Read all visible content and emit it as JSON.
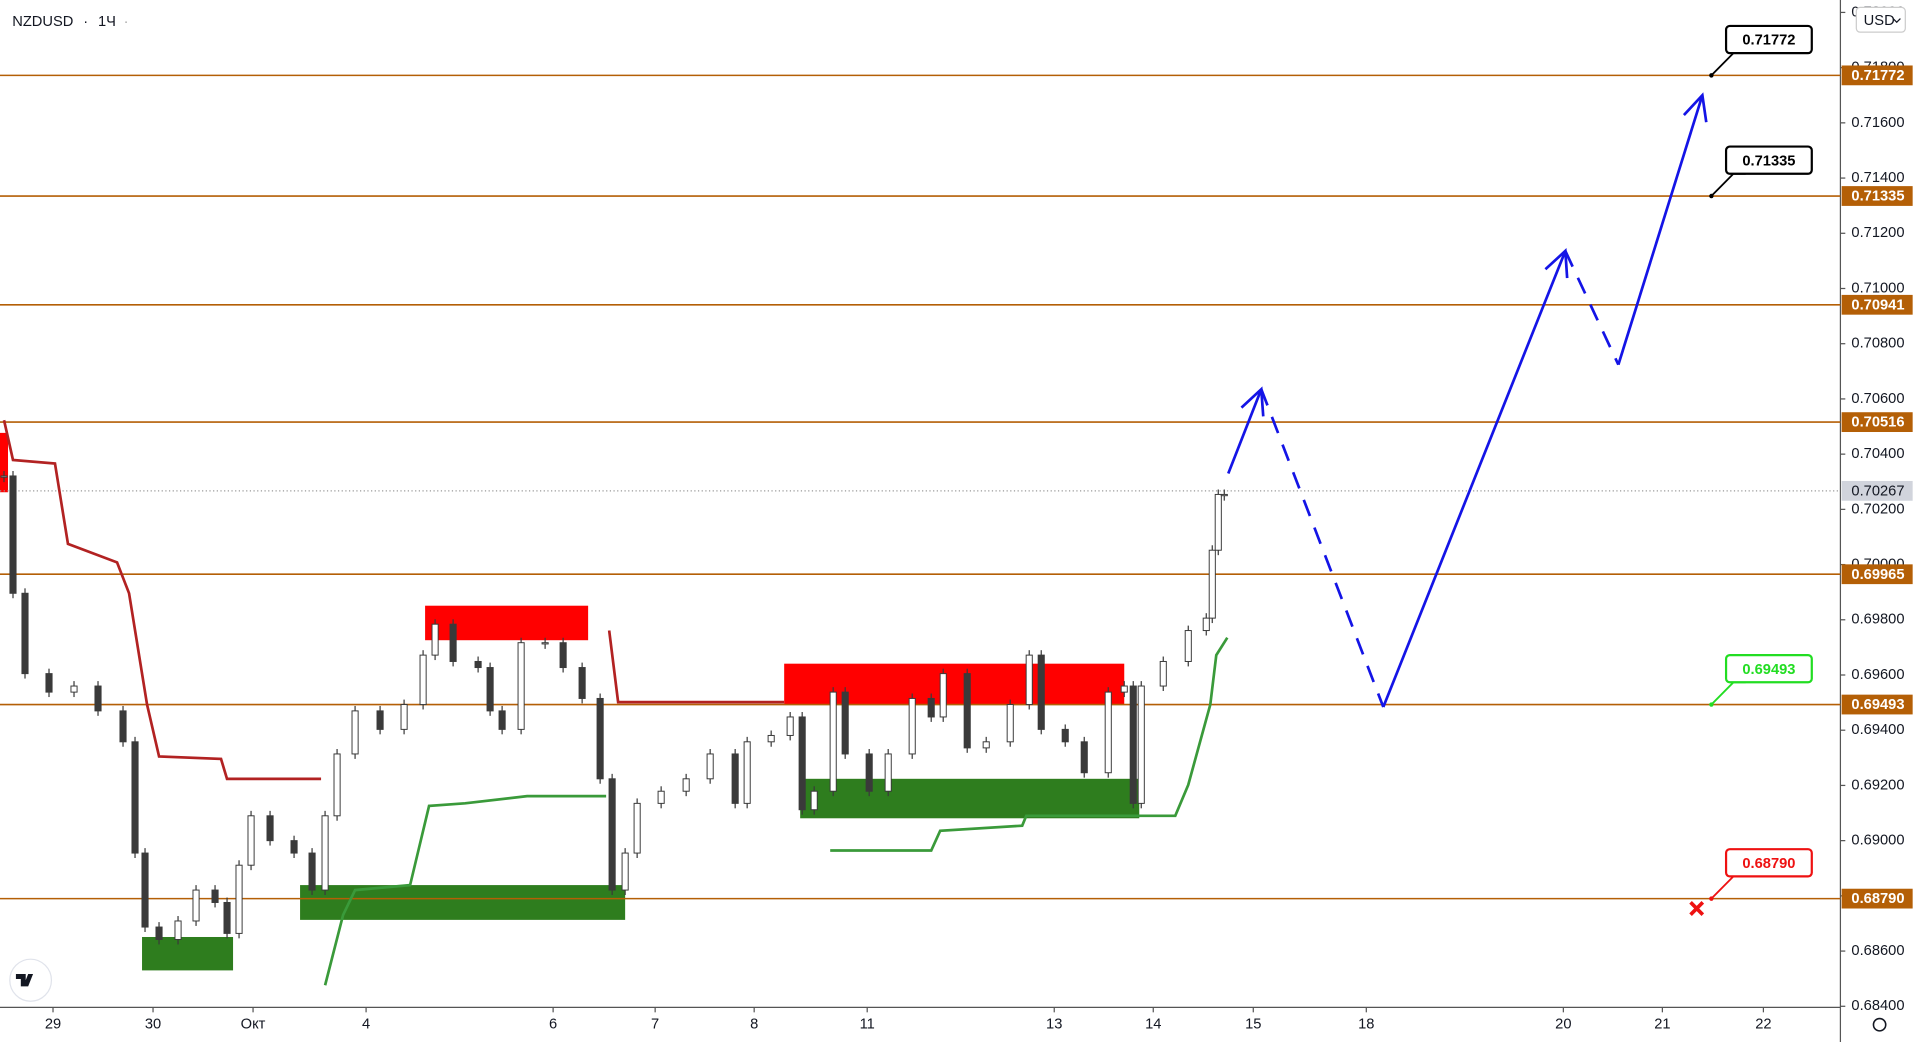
{
  "chart_data": {
    "type": "candlestick",
    "title": "NZDUSD",
    "interval": "1Ч",
    "currency": "USD",
    "ylim": [
      0.68396,
      0.72045
    ],
    "yticks": [
      {
        "value": 0.684,
        "label": "0.68400"
      },
      {
        "value": 0.686,
        "label": "0.68600"
      },
      {
        "value": 0.688,
        "label": "0.68800"
      },
      {
        "value": 0.69,
        "label": "0.69000"
      },
      {
        "value": 0.692,
        "label": "0.69200"
      },
      {
        "value": 0.694,
        "label": "0.69400"
      },
      {
        "value": 0.696,
        "label": "0.69600"
      },
      {
        "value": 0.698,
        "label": "0.69800"
      },
      {
        "value": 0.7,
        "label": "0.70000"
      },
      {
        "value": 0.702,
        "label": "0.70200"
      },
      {
        "value": 0.704,
        "label": "0.70400"
      },
      {
        "value": 0.706,
        "label": "0.70600"
      },
      {
        "value": 0.708,
        "label": "0.70800"
      },
      {
        "value": 0.71,
        "label": "0.71000"
      },
      {
        "value": 0.712,
        "label": "0.71200"
      },
      {
        "value": 0.714,
        "label": "0.71400"
      },
      {
        "value": 0.716,
        "label": "0.71600"
      },
      {
        "value": 0.718,
        "label": "0.71800"
      },
      {
        "value": 0.72,
        "label": "0.72000"
      }
    ],
    "xlim": [
      -0.53,
      17.87
    ],
    "xticks": [
      {
        "value": 0,
        "label": "29"
      },
      {
        "value": 1,
        "label": "30"
      },
      {
        "value": 2,
        "label": "Окт"
      },
      {
        "value": 3.13,
        "label": "4"
      },
      {
        "value": 5.0,
        "label": "6"
      },
      {
        "value": 6.02,
        "label": "7"
      },
      {
        "value": 7.01,
        "label": "8"
      },
      {
        "value": 8.14,
        "label": "11"
      },
      {
        "value": 10.01,
        "label": "13"
      },
      {
        "value": 11.0,
        "label": "14"
      },
      {
        "value": 12.0,
        "label": "15"
      },
      {
        "value": 13.13,
        "label": "18"
      },
      {
        "value": 15.1,
        "label": "20"
      },
      {
        "value": 16.09,
        "label": "21"
      },
      {
        "value": 17.1,
        "label": "22"
      }
    ],
    "candles": {
      "color": "#3a3a3a",
      "x": [
        -0.49,
        -0.4,
        -0.28,
        -0.04,
        0.21,
        0.45,
        0.7,
        0.82,
        0.92,
        1.06,
        1.25,
        1.43,
        1.62,
        1.74,
        1.86,
        1.98,
        2.17,
        2.41,
        2.59,
        2.72,
        2.84,
        3.02,
        3.27,
        3.51,
        3.7,
        3.82,
        4.0,
        4.25,
        4.37,
        4.49,
        4.68,
        4.92,
        5.1,
        5.29,
        5.47,
        5.59,
        5.72,
        5.84,
        6.08,
        6.33,
        6.57,
        6.82,
        6.94,
        7.18,
        7.37,
        7.49,
        7.61,
        7.8,
        7.92,
        8.16,
        8.35,
        8.59,
        8.78,
        8.9,
        9.14,
        9.33,
        9.57,
        9.76,
        9.88,
        10.12,
        10.31,
        10.55,
        10.71,
        10.8,
        10.88,
        11.1,
        11.35,
        11.53,
        11.59,
        11.65,
        11.71
      ],
      "close": [
        0.70321,
        0.69896,
        0.69605,
        0.69538,
        0.6956,
        0.6947,
        0.69358,
        0.68955,
        0.68687,
        0.68642,
        0.68709,
        0.68821,
        0.68776,
        0.68664,
        0.68911,
        0.6909,
        0.69,
        0.68955,
        0.68821,
        0.6909,
        0.69314,
        0.6947,
        0.69403,
        0.69493,
        0.69672,
        0.69784,
        0.69649,
        0.69627,
        0.6947,
        0.69403,
        0.69717,
        0.69717,
        0.69627,
        0.69515,
        0.69224,
        0.68821,
        0.68955,
        0.69135,
        0.69179,
        0.69224,
        0.69314,
        0.69135,
        0.69358,
        0.69381,
        0.69448,
        0.69112,
        0.69179,
        0.69538,
        0.69314,
        0.69179,
        0.69314,
        0.69515,
        0.69448,
        0.69605,
        0.69336,
        0.69358,
        0.69493,
        0.69672,
        0.69403,
        0.69358,
        0.69246,
        0.69538,
        0.6956,
        0.69135,
        0.6956,
        0.69649,
        0.69761,
        0.69806,
        0.70052,
        0.70254,
        0.70254
      ]
    },
    "supertrend": [
      {
        "color": "#b22222",
        "x": [
          -0.49,
          -0.4,
          0.02,
          0.15,
          0.64,
          0.76,
          0.94,
          1.06,
          1.68,
          1.74,
          2.68,
          null,
          5.56,
          5.65,
          7.31
        ],
        "values": [
          0.70523,
          0.70379,
          0.70366,
          0.70075,
          0.70008,
          0.69896,
          0.69493,
          0.69305,
          0.69296,
          0.69224,
          0.69224,
          null,
          0.69761,
          0.69502,
          0.69502
        ]
      },
      {
        "color": "#3a9a3a",
        "x": [
          2.72,
          2.9,
          3.02,
          3.57,
          3.76,
          4.12,
          4.74,
          5.53,
          null,
          7.77,
          8.78,
          8.87,
          9.69,
          9.73,
          11.22,
          11.35,
          11.57,
          11.63,
          11.74
        ],
        "values": [
          0.68476,
          0.68731,
          0.68821,
          0.68839,
          0.69126,
          0.69135,
          0.69161,
          0.69161,
          null,
          0.68964,
          0.68964,
          0.69036,
          0.69054,
          0.6909,
          0.6909,
          0.69202,
          0.69493,
          0.69672,
          0.69735
        ]
      }
    ],
    "zones": [
      {
        "color": "#ff0000",
        "x": [
          -0.53,
          -0.45
        ],
        "price": [
          0.70477,
          0.70262
        ]
      },
      {
        "color": "#ff0000",
        "x": [
          3.72,
          5.35
        ],
        "price": [
          0.69851,
          0.69726
        ]
      },
      {
        "color": "#ff0000",
        "x": [
          7.31,
          10.71
        ],
        "price": [
          0.69641,
          0.69493
        ]
      },
      {
        "color": "#2e7d1e",
        "x": [
          0.89,
          1.8
        ],
        "price": [
          0.68651,
          0.6853
        ]
      },
      {
        "color": "#2e7d1e",
        "x": [
          2.47,
          5.72
        ],
        "price": [
          0.68839,
          0.68713
        ]
      },
      {
        "color": "#2e7d1e",
        "x": [
          7.47,
          10.86
        ],
        "price": [
          0.69224,
          0.69081
        ]
      }
    ],
    "projection": {
      "color": "#1414e6",
      "x": [
        11.75,
        12.08,
        13.3,
        15.12,
        15.65,
        16.49
      ],
      "values": [
        0.7033,
        0.70635,
        0.69484,
        0.71136,
        0.70724,
        0.717
      ],
      "dashed": [
        false,
        true,
        false,
        true,
        false
      ]
    },
    "levels": [
      {
        "value": 0.71772,
        "label": "0.71772"
      },
      {
        "value": 0.71335,
        "label": "0.71335"
      },
      {
        "value": 0.70941,
        "label": "0.70941"
      },
      {
        "value": 0.70516,
        "label": "0.70516"
      },
      {
        "value": 0.69965,
        "label": "0.69965"
      },
      {
        "value": 0.69493,
        "label": "0.69493"
      },
      {
        "value": 0.6879,
        "label": "0.68790"
      }
    ],
    "level_color": "#b45f06",
    "last_price": {
      "value": 0.70267,
      "label": "0.70267"
    },
    "callouts": [
      {
        "value": 0.71772,
        "label": "0.71772",
        "color": "#000000",
        "x": 16.58
      },
      {
        "value": 0.71335,
        "label": "0.71335",
        "color": "#000000",
        "x": 16.58
      },
      {
        "value": 0.69493,
        "label": "0.69493",
        "color": "#22dd22",
        "x": 16.58
      },
      {
        "value": 0.6879,
        "label": "0.68790",
        "color": "#ee1111",
        "x": 16.58
      }
    ]
  }
}
